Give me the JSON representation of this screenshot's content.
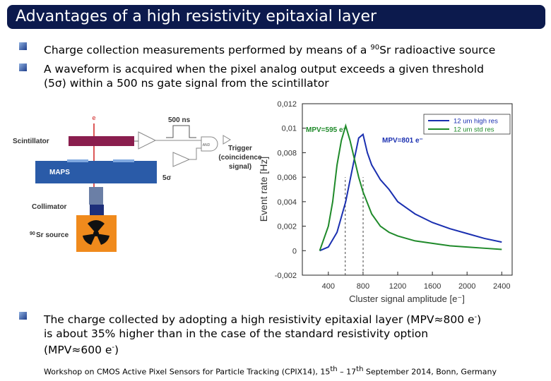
{
  "title": "Advantages of a high resistivity epitaxial layer",
  "bullets": [
    {
      "parts": [
        "Charge collection measurements performed by means of a ",
        "90",
        "Sr radioactive source"
      ]
    },
    {
      "parts": [
        "A waveform is acquired when the pixel analog output exceeds a given threshold",
        "(5σ) within a 500 ns gate signal from the scintillator"
      ]
    },
    {
      "parts": [
        "The charge collected by adopting a high resistivity epitaxial layer (MPV≈800 e",
        "-",
        ")",
        "is about 35% higher than in the case of the standard resistivity option",
        "(MPV≈600 e",
        "-",
        ")"
      ]
    }
  ],
  "diagram": {
    "electron": "e",
    "scintillator": "Scintillator",
    "gate": "500 ns",
    "and": "AND",
    "trigger": [
      "Trigger",
      "(coincidence",
      "signal)"
    ],
    "maps": "MAPS",
    "threshold": "5σ",
    "collimator": "Collimator",
    "source_sup": "90",
    "source": "Sr source"
  },
  "chart": {
    "type": "line",
    "xlabel": "Cluster signal amplitude [e⁻]",
    "ylabel": "Event rate [Hz]",
    "xlim": [
      100,
      2520
    ],
    "ylim": [
      -0.002,
      0.012
    ],
    "xticks": [
      400,
      800,
      1200,
      1600,
      2000,
      2400
    ],
    "yticks": [
      {
        "value": -0.002,
        "label": "-0,002"
      },
      0,
      {
        "value": 0.002,
        "label": "0,002"
      },
      {
        "value": 0.004,
        "label": "0,004"
      },
      {
        "value": 0.006,
        "label": "0,006"
      },
      {
        "value": 0.008,
        "label": "0,008"
      },
      {
        "value": 0.01,
        "label": "0,01"
      },
      {
        "value": 0.012,
        "label": "0,012"
      }
    ],
    "legend": "top-right",
    "series": [
      {
        "name": "12 um high res",
        "color": "#1a2fb0",
        "x": [
          300,
          400,
          500,
          600,
          700,
          750,
          800,
          850,
          900,
          1000,
          1100,
          1200,
          1300,
          1400,
          1600,
          1800,
          2000,
          2200,
          2400
        ],
        "values": [
          0,
          0.0003,
          0.0015,
          0.004,
          0.0075,
          0.0092,
          0.0095,
          0.008,
          0.007,
          0.0058,
          0.005,
          0.004,
          0.0035,
          0.003,
          0.0023,
          0.0018,
          0.0014,
          0.001,
          0.0007
        ]
      },
      {
        "name": "12 um std res",
        "color": "#1f8a2a",
        "x": [
          300,
          400,
          450,
          500,
          550,
          600,
          650,
          700,
          750,
          800,
          900,
          1000,
          1100,
          1200,
          1400,
          1600,
          1800,
          2000,
          2200,
          2400
        ],
        "values": [
          0,
          0.002,
          0.004,
          0.007,
          0.009,
          0.0102,
          0.009,
          0.0075,
          0.006,
          0.0048,
          0.003,
          0.002,
          0.0015,
          0.0012,
          0.0008,
          0.0006,
          0.0004,
          0.0003,
          0.0002,
          0.0001
        ]
      }
    ],
    "annotations": [
      {
        "text": "MPV=595 e⁻",
        "x": 595,
        "color": "#1f8a2a"
      },
      {
        "text": "MPV=801 e⁻",
        "x": 801,
        "color": "#1a2fb0"
      }
    ]
  },
  "footer": [
    "Workshop on CMOS Active Pixel Sensors for Particle Tracking (CPIX14), 15",
    "th",
    " – 17",
    "th",
    " September 2014, Bonn, Germany"
  ]
}
